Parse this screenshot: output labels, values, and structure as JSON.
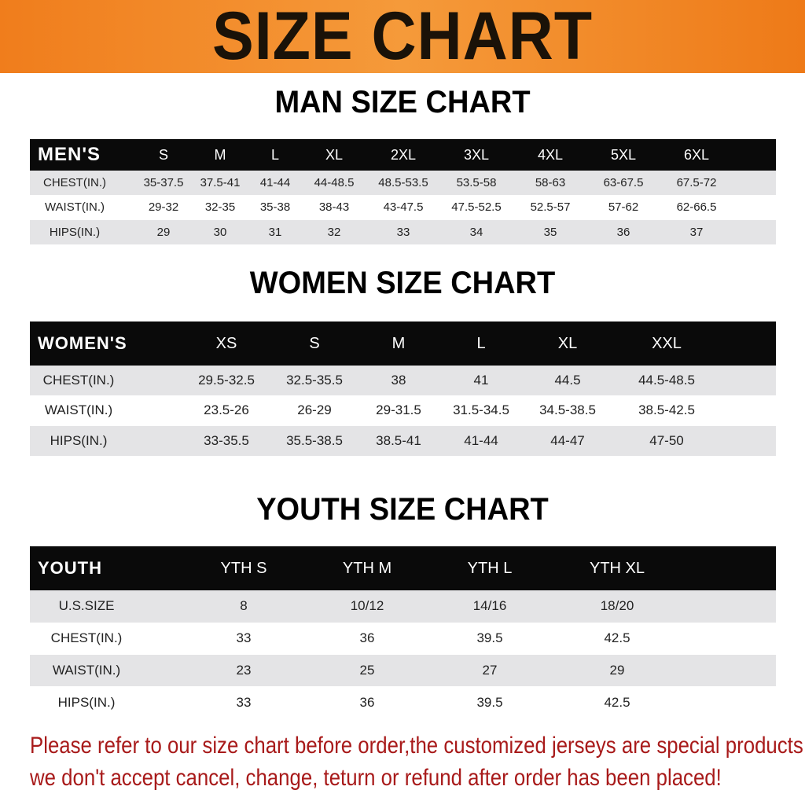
{
  "banner": {
    "title": "SIZE CHART",
    "color": "#f07d1c"
  },
  "men": {
    "title": "MAN SIZE CHART",
    "headers": [
      "MEN'S",
      "S",
      "M",
      "L",
      "XL",
      "2XL",
      "3XL",
      "4XL",
      "5XL",
      "6XL"
    ],
    "rows": [
      [
        "CHEST(IN.)",
        "35-37.5",
        "37.5-41",
        "41-44",
        "44-48.5",
        "48.5-53.5",
        "53.5-58",
        "58-63",
        "63-67.5",
        "67.5-72"
      ],
      [
        "WAIST(IN.)",
        "29-32",
        "32-35",
        "35-38",
        "38-43",
        "43-47.5",
        "47.5-52.5",
        "52.5-57",
        "57-62",
        "62-66.5"
      ],
      [
        "HIPS(IN.)",
        "29",
        "30",
        "31",
        "32",
        "33",
        "34",
        "35",
        "36",
        "37"
      ]
    ]
  },
  "women": {
    "title": "WOMEN SIZE CHART",
    "headers": [
      "WOMEN'S",
      "XS",
      "S",
      "M",
      "L",
      "XL",
      "XXL"
    ],
    "rows": [
      [
        "CHEST(IN.)",
        "29.5-32.5",
        "32.5-35.5",
        "38",
        "41",
        "44.5",
        "44.5-48.5"
      ],
      [
        "WAIST(IN.)",
        "23.5-26",
        "26-29",
        "29-31.5",
        "31.5-34.5",
        "34.5-38.5",
        "38.5-42.5"
      ],
      [
        "HIPS(IN.)",
        "33-35.5",
        "35.5-38.5",
        "38.5-41",
        "41-44",
        "44-47",
        "47-50"
      ]
    ]
  },
  "youth": {
    "title": "YOUTH SIZE CHART",
    "headers": [
      "YOUTH",
      "YTH S",
      "YTH M",
      "YTH L",
      "YTH XL"
    ],
    "rows": [
      [
        "U.S.SIZE",
        "8",
        "10/12",
        "14/16",
        "18/20"
      ],
      [
        "CHEST(IN.)",
        "33",
        "36",
        "39.5",
        "42.5"
      ],
      [
        "WAIST(IN.)",
        "23",
        "25",
        "27",
        "29"
      ],
      [
        "HIPS(IN.)",
        "33",
        "36",
        "39.5",
        "42.5"
      ]
    ]
  },
  "notice": {
    "line1": "Please refer to our size chart before order,the customized jerseys are special products,",
    "line2": "we don't accept cancel, change, teturn or refund after order has been placed!",
    "color": "#a81a1a"
  }
}
